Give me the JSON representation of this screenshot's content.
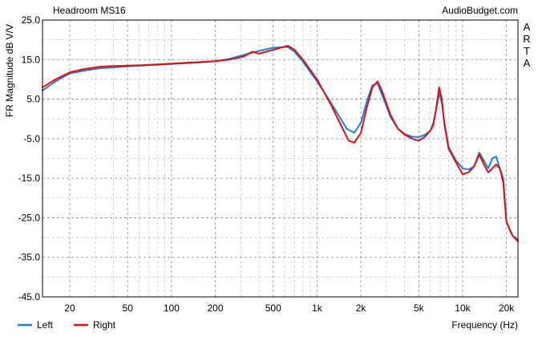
{
  "chart_data": {
    "type": "line",
    "title": "Headroom MS16",
    "source_label": "AudioBudget.com",
    "side_label": "ARTA",
    "ylabel": "FR Magnitude dB V/V",
    "xlabel": "Frequency (Hz)",
    "x_scale": "log",
    "xlim": [
      13,
      24000
    ],
    "ylim": [
      -45,
      25
    ],
    "y_ticks": [
      "25.0",
      "15.0",
      "5.0",
      "-5.0",
      "-15.0",
      "-25.0",
      "-35.0",
      "-45.0"
    ],
    "y_tick_values": [
      25,
      15,
      5,
      -5,
      -15,
      -25,
      -35,
      -45
    ],
    "x_ticks": [
      "20",
      "50",
      "100",
      "200",
      "500",
      "1k",
      "2k",
      "5k",
      "10k",
      "20k"
    ],
    "x_tick_values": [
      20,
      50,
      100,
      200,
      500,
      1000,
      2000,
      5000,
      10000,
      20000
    ],
    "grid": true,
    "legend_position": "bottom-left",
    "series": [
      {
        "name": "Left",
        "color": "#1f7fe0",
        "x": [
          13,
          16,
          20,
          25,
          32,
          40,
          50,
          63,
          80,
          100,
          125,
          160,
          200,
          250,
          315,
          400,
          500,
          630,
          700,
          800,
          1000,
          1250,
          1600,
          1800,
          2000,
          2200,
          2400,
          2600,
          2800,
          3200,
          3600,
          4000,
          4500,
          5000,
          5500,
          6000,
          6300,
          6600,
          6900,
          7200,
          7500,
          8000,
          9000,
          10000,
          11000,
          12000,
          13000,
          14000,
          15000,
          16000,
          17000,
          18000,
          19000,
          20000,
          22000,
          24000
        ],
        "y": [
          7.2,
          9.5,
          11.5,
          12.2,
          12.8,
          13.0,
          13.3,
          13.5,
          13.7,
          13.9,
          14.1,
          14.3,
          14.6,
          15.2,
          16.2,
          17.2,
          18.0,
          18.2,
          17.0,
          14.5,
          9.5,
          4.0,
          -2.5,
          -3.5,
          -1.0,
          4.5,
          8.5,
          9.0,
          6.0,
          0.5,
          -2.5,
          -3.8,
          -4.5,
          -4.6,
          -4.0,
          -3.0,
          -1.0,
          2.5,
          6.5,
          4.0,
          -1.0,
          -7.0,
          -10.5,
          -12.5,
          -12.8,
          -12.0,
          -8.5,
          -10.5,
          -12.5,
          -10.0,
          -9.5,
          -12.5,
          -15.0,
          -26.0,
          -29.5,
          -30.5
        ]
      },
      {
        "name": "Right",
        "color": "#e01010",
        "x": [
          13,
          16,
          20,
          25,
          32,
          40,
          50,
          63,
          80,
          100,
          125,
          160,
          200,
          250,
          315,
          360,
          400,
          500,
          630,
          700,
          800,
          1000,
          1250,
          1500,
          1650,
          1800,
          2000,
          2200,
          2400,
          2600,
          2800,
          3200,
          3600,
          4000,
          4500,
          5000,
          5500,
          6000,
          6300,
          6600,
          6900,
          7200,
          7500,
          8000,
          9000,
          10000,
          11000,
          12000,
          13000,
          14000,
          15000,
          16000,
          17000,
          18000,
          19000,
          20000,
          22000,
          24000
        ],
        "y": [
          8.0,
          10.0,
          11.8,
          12.6,
          13.2,
          13.4,
          13.5,
          13.6,
          13.8,
          14.0,
          14.2,
          14.4,
          14.6,
          15.0,
          15.8,
          17.0,
          16.5,
          17.5,
          18.5,
          17.5,
          15.0,
          10.0,
          3.5,
          -2.5,
          -5.5,
          -6.0,
          -3.5,
          3.0,
          8.0,
          9.5,
          7.0,
          1.0,
          -2.5,
          -4.0,
          -5.0,
          -5.5,
          -4.5,
          -3.0,
          -1.5,
          3.0,
          8.0,
          5.0,
          -1.5,
          -7.5,
          -11.0,
          -14.0,
          -13.5,
          -12.0,
          -9.0,
          -11.5,
          -13.5,
          -12.5,
          -11.5,
          -12.5,
          -16.0,
          -26.0,
          -29.5,
          -31.0
        ]
      }
    ]
  }
}
